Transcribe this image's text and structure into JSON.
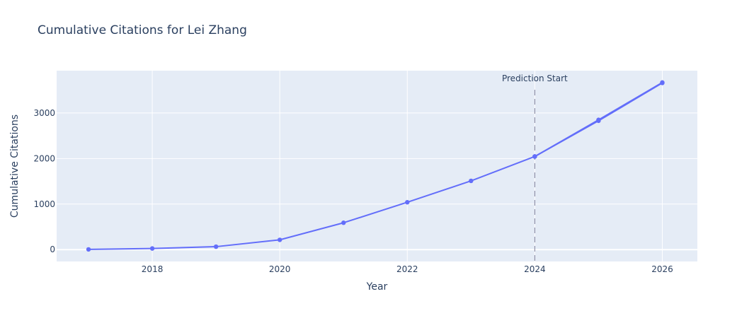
{
  "chart_data": {
    "type": "line",
    "title": "Cumulative Citations for Lei Zhang",
    "xlabel": "Year",
    "ylabel": "Cumulative Citations",
    "xlim": [
      2016.5,
      2026.55
    ],
    "ylim": [
      -260,
      3930
    ],
    "xticks": [
      2018,
      2020,
      2022,
      2024,
      2026
    ],
    "yticks": [
      0,
      1000,
      2000,
      3000
    ],
    "series": [
      {
        "x": [
          2017,
          2018,
          2019,
          2020,
          2021,
          2022,
          2023,
          2024
        ],
        "y": [
          5,
          25,
          65,
          215,
          590,
          1040,
          1510,
          2045
        ]
      },
      {
        "x": [
          2024,
          2025,
          2026
        ],
        "y": [
          2045,
          2830,
          3660
        ]
      },
      {
        "x": [
          2024,
          2025,
          2026
        ],
        "y": [
          2045,
          2850,
          3670
        ]
      }
    ],
    "annotation": {
      "x": 2024,
      "text": "Prediction Start"
    },
    "colors": {
      "line": "#636efa",
      "plot_bg": "#e5ecf6",
      "grid": "#ffffff",
      "vline": "#7f7f9a"
    },
    "grid": true
  }
}
